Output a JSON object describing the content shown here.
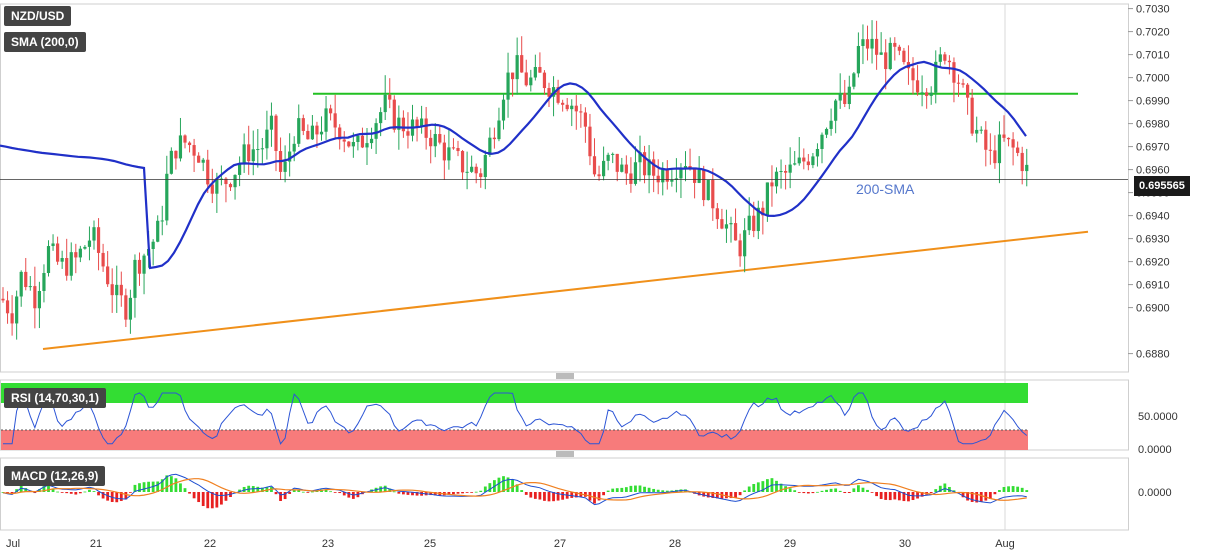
{
  "symbol_label": "NZD/USD",
  "sma_label": "SMA (200,0)",
  "sma_annotation": "200-SMA",
  "rsi_label": "RSI (14,70,30,1)",
  "macd_label": "MACD (12,26,9)",
  "last_price": "0.695565",
  "rsi_mid_label": "50.0000",
  "rsi_zero_label": "0.0000",
  "macd_zero_label": "0.0000",
  "colors": {
    "up": "#26a65b",
    "down": "#e84c4c",
    "sma": "#2030c8",
    "resistance": "#22c022",
    "support": "#f0901a",
    "rsi_over": "#33dd33",
    "rsi_under": "#f77b7b",
    "rsi_line": "#2c55d6",
    "macd_line": "#1e4fd0",
    "signal_line": "#f08020"
  },
  "chart_data": [
    {
      "type": "candlestick",
      "title": "NZD/USD",
      "x_ticks": [
        "Jul",
        "21",
        "22",
        "23",
        "25",
        "27",
        "28",
        "29",
        "30",
        "Aug"
      ],
      "y_ticks": [
        "0.7030",
        "0.7020",
        "0.7010",
        "0.7000",
        "0.6990",
        "0.6980",
        "0.6970",
        "0.6960",
        "0.6950",
        "0.6940",
        "0.6930",
        "0.6920",
        "0.6910",
        "0.6900",
        "0.6880"
      ],
      "ylim": [
        0.6872,
        0.7032
      ],
      "overlays": [
        {
          "name": "SMA (200,0)",
          "kind": "moving-average"
        },
        {
          "kind": "horizontal-resistance",
          "value": 0.6993
        },
        {
          "kind": "ascending-support",
          "from": 0.6882,
          "to": 0.6933
        }
      ],
      "waypoints": [
        [
          0,
          0.6905
        ],
        [
          12,
          0.6898
        ],
        [
          22,
          0.6915
        ],
        [
          35,
          0.6905
        ],
        [
          48,
          0.6925
        ],
        [
          60,
          0.6918
        ],
        [
          75,
          0.692
        ],
        [
          92,
          0.6932
        ],
        [
          100,
          0.6922
        ],
        [
          115,
          0.6905
        ],
        [
          127,
          0.69
        ],
        [
          135,
          0.6918
        ],
        [
          152,
          0.6928
        ],
        [
          160,
          0.6935
        ],
        [
          168,
          0.696
        ],
        [
          176,
          0.697
        ],
        [
          186,
          0.6972
        ],
        [
          198,
          0.6968
        ],
        [
          208,
          0.6958
        ],
        [
          218,
          0.6952
        ],
        [
          232,
          0.6958
        ],
        [
          247,
          0.6968
        ],
        [
          262,
          0.697
        ],
        [
          272,
          0.6978
        ],
        [
          282,
          0.6955
        ],
        [
          295,
          0.6978
        ],
        [
          310,
          0.6972
        ],
        [
          325,
          0.6982
        ],
        [
          340,
          0.6978
        ],
        [
          355,
          0.6968
        ],
        [
          370,
          0.6978
        ],
        [
          385,
          0.6988
        ],
        [
          398,
          0.698
        ],
        [
          415,
          0.6978
        ],
        [
          430,
          0.6975
        ],
        [
          445,
          0.6968
        ],
        [
          462,
          0.6962
        ],
        [
          480,
          0.6958
        ],
        [
          492,
          0.6975
        ],
        [
          505,
          0.6998
        ],
        [
          515,
          0.7005
        ],
        [
          528,
          0.6998
        ],
        [
          540,
          0.7
        ],
        [
          555,
          0.6995
        ],
        [
          570,
          0.699
        ],
        [
          585,
          0.698
        ],
        [
          596,
          0.6955
        ],
        [
          610,
          0.6965
        ],
        [
          625,
          0.6958
        ],
        [
          640,
          0.6962
        ],
        [
          655,
          0.6958
        ],
        [
          670,
          0.696
        ],
        [
          685,
          0.6965
        ],
        [
          700,
          0.6955
        ],
        [
          715,
          0.6945
        ],
        [
          727,
          0.6935
        ],
        [
          738,
          0.6925
        ],
        [
          750,
          0.6935
        ],
        [
          762,
          0.6942
        ],
        [
          772,
          0.6955
        ],
        [
          786,
          0.6958
        ],
        [
          800,
          0.6962
        ],
        [
          812,
          0.6968
        ],
        [
          823,
          0.6978
        ],
        [
          835,
          0.699
        ],
        [
          848,
          0.6988
        ],
        [
          858,
          0.7012
        ],
        [
          870,
          0.7015
        ],
        [
          882,
          0.7008
        ],
        [
          895,
          0.701
        ],
        [
          908,
          0.7
        ],
        [
          920,
          0.6998
        ],
        [
          932,
          0.6998
        ],
        [
          945,
          0.7012
        ],
        [
          958,
          0.7
        ],
        [
          968,
          0.6985
        ],
        [
          978,
          0.6975
        ],
        [
          990,
          0.6965
        ],
        [
          1003,
          0.6972
        ],
        [
          1015,
          0.6968
        ],
        [
          1025,
          0.6962
        ],
        [
          1030,
          0.6955
        ]
      ]
    },
    {
      "type": "line",
      "title": "RSI (14,70,30,1)",
      "y_ticks": [
        "50.0000",
        "0.0000"
      ],
      "series": [
        {
          "name": "RSI (14,70,30,1)"
        }
      ]
    },
    {
      "type": "line+bar",
      "title": "MACD (12,26,9)",
      "y_ticks": [
        "0.0000"
      ],
      "series": [
        {
          "name": "MACD (12,26,9)"
        }
      ]
    }
  ]
}
